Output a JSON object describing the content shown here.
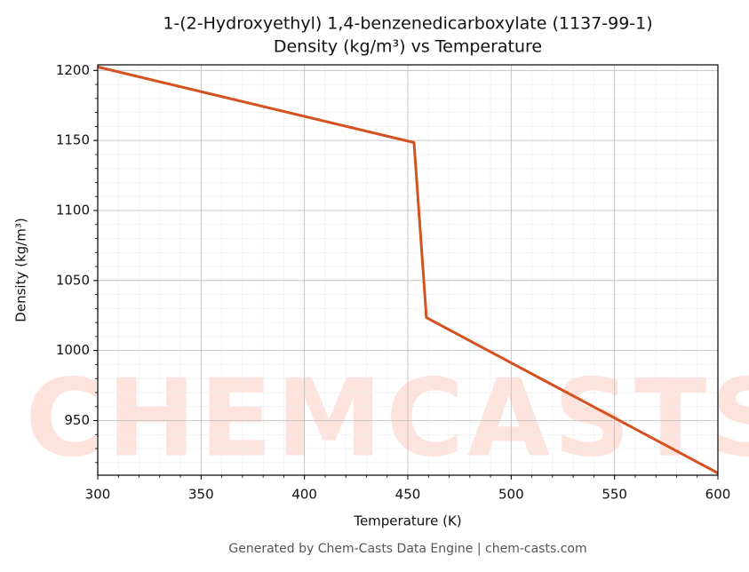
{
  "chart_data": {
    "type": "line",
    "title": [
      "1-(2-Hydroxyethyl) 1,4-benzenedicarboxylate (1137-99-1)",
      "Density (kg/m³) vs Temperature"
    ],
    "x_label": "Temperature (K)",
    "y_label": "Density (kg/m³)",
    "footer": "Generated by Chem-Casts Data Engine | chem-casts.com",
    "watermark": "CHEMCASTS",
    "x": [
      300,
      453,
      459,
      600
    ],
    "series": [
      {
        "name": "Density",
        "color": "#d4521f",
        "values": [
          1202.5,
          1148.5,
          1023.5,
          912.5
        ]
      }
    ],
    "xlim": [
      300,
      600
    ],
    "xticks": [
      300,
      350,
      400,
      450,
      500,
      550,
      600
    ],
    "ylim": [
      911,
      1204
    ],
    "yticks": [
      950,
      1000,
      1050,
      1100,
      1150,
      1200
    ],
    "grid": true,
    "minor_grid": true
  }
}
